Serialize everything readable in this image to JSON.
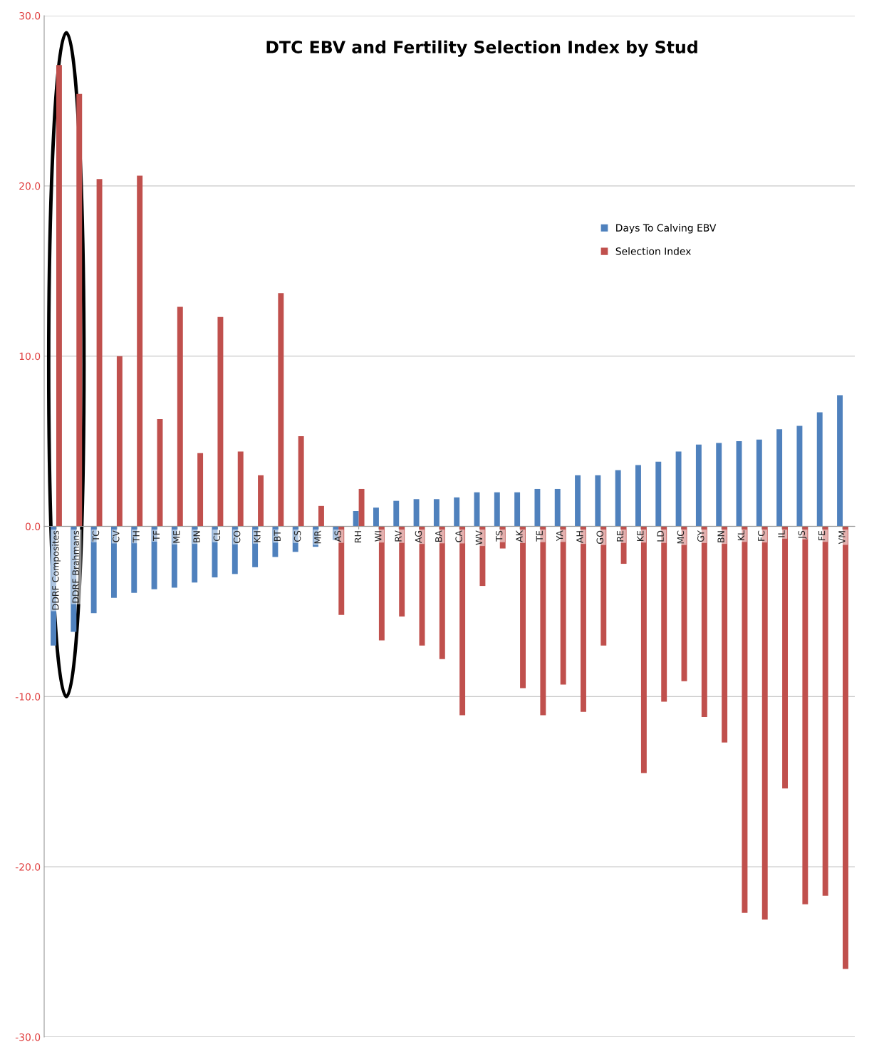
{
  "chart_data": {
    "type": "bar",
    "title": "DTC EBV and Fertility Selection Index by Stud",
    "categories": [
      "DDRF Composites",
      "DDRF Brahmans",
      "TC",
      "CV",
      "TH",
      "TF",
      "ME",
      "BN",
      "CL",
      "CO",
      "KH",
      "BT",
      "CS",
      "MR",
      "AS",
      "RH",
      "WI",
      "RV",
      "AG",
      "BA",
      "CA",
      "WV",
      "TS",
      "AK",
      "TE",
      "YA",
      "AH",
      "GO",
      "RE",
      "KE",
      "LD",
      "MC",
      "GY",
      "BN",
      "KL",
      "FC",
      "IL",
      "JS",
      "FE",
      "VM"
    ],
    "series": [
      {
        "name": "Days To Calving EBV",
        "color": "#4f81bd",
        "values": [
          -7.0,
          -6.2,
          -5.1,
          -4.2,
          -3.9,
          -3.7,
          -3.6,
          -3.3,
          -3.0,
          -2.8,
          -2.4,
          -1.8,
          -1.5,
          -1.2,
          -0.8,
          0.9,
          1.1,
          1.5,
          1.6,
          1.6,
          1.7,
          2.0,
          2.0,
          2.0,
          2.2,
          2.2,
          3.0,
          3.0,
          3.3,
          3.6,
          3.8,
          4.4,
          4.8,
          4.9,
          5.0,
          5.1,
          5.7,
          5.9,
          6.7,
          7.7
        ]
      },
      {
        "name": "Selection Index",
        "color": "#c0504d",
        "values": [
          27.1,
          25.4,
          20.4,
          10.0,
          20.6,
          6.3,
          12.9,
          4.3,
          12.3,
          4.4,
          3.0,
          13.7,
          5.3,
          1.2,
          -5.2,
          2.2,
          -6.7,
          -5.3,
          -7.0,
          -7.8,
          -11.1,
          -3.5,
          -1.3,
          -9.5,
          -11.1,
          -9.3,
          -10.9,
          -7.0,
          -2.2,
          -14.5,
          -10.3,
          -9.1,
          -11.2,
          -12.7,
          -22.7,
          -23.1,
          -15.4,
          -22.2,
          -21.7,
          -26.0
        ]
      }
    ],
    "ylim": [
      -30,
      30
    ],
    "yticks": [
      {
        "value": -30,
        "label": "-30.0"
      },
      {
        "value": -20,
        "label": "-20.0"
      },
      {
        "value": -10,
        "label": "-10.0"
      },
      {
        "value": 0,
        "label": "0.0"
      },
      {
        "value": 10,
        "label": "10.0"
      },
      {
        "value": 20,
        "label": "20.0"
      },
      {
        "value": 30,
        "label": "30.0"
      }
    ],
    "grid": "y",
    "legend": "right"
  }
}
